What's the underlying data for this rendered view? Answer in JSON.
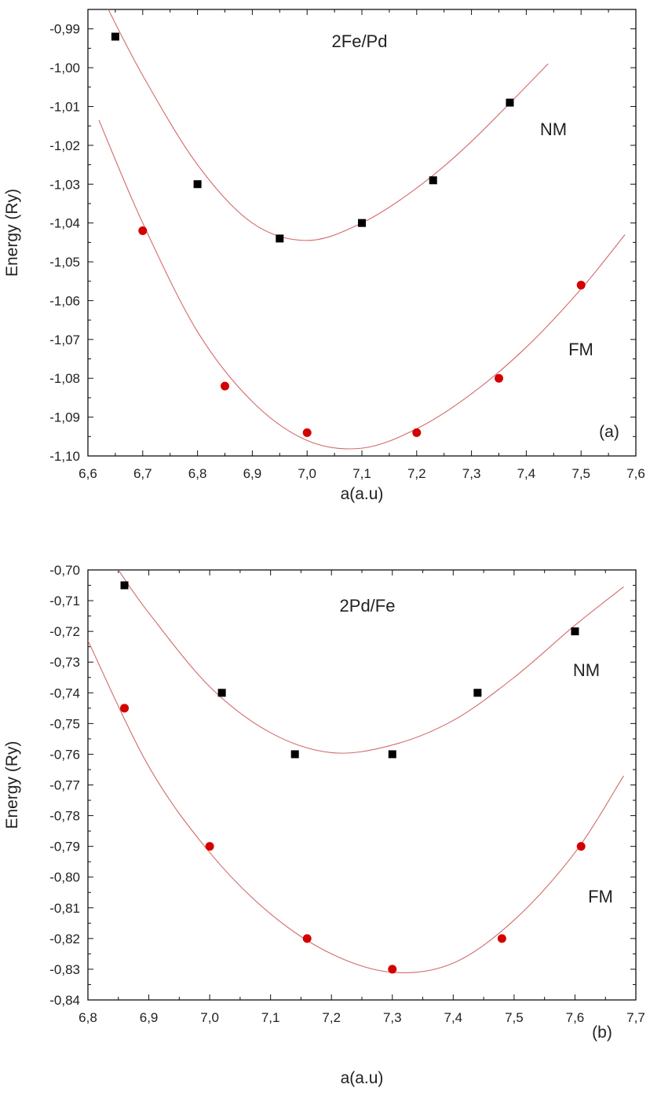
{
  "chart_data": [
    {
      "type": "scatter",
      "panel_label": "(a)",
      "annotation": "2Fe/Pd",
      "xlabel": "a(a.u)",
      "ylabel": "Energy (Ry)",
      "xlim": [
        6.6,
        7.6
      ],
      "ylim": [
        -1.1,
        -0.985
      ],
      "x_ticks": [
        "6,6",
        "6,7",
        "6,8",
        "6,9",
        "7,0",
        "7,1",
        "7,2",
        "7,3",
        "7,4",
        "7,5",
        "7,6"
      ],
      "y_ticks": [
        "-0,99",
        "-1,00",
        "-1,01",
        "-1,02",
        "-1,03",
        "-1,04",
        "-1,05",
        "-1,06",
        "-1,07",
        "-1,08",
        "-1,09",
        "-1,10"
      ],
      "series": [
        {
          "name": "NM",
          "marker": "square",
          "color": "#000000",
          "x": [
            6.65,
            6.8,
            6.95,
            7.1,
            7.23,
            7.37
          ],
          "y": [
            -0.992,
            -1.03,
            -1.044,
            -1.04,
            -1.029,
            -1.009
          ],
          "fit": {
            "x": [
              6.63,
              6.7,
              6.8,
              6.9,
              7.0,
              7.1,
              7.2,
              7.3,
              7.44
            ],
            "y": [
              -0.983,
              -1.002,
              -1.025,
              -1.04,
              -1.0445,
              -1.04,
              -1.031,
              -1.019,
              -0.999
            ]
          }
        },
        {
          "name": "FM",
          "marker": "circle",
          "color": "#d40000",
          "x": [
            6.7,
            6.85,
            7.0,
            7.2,
            7.35,
            7.5
          ],
          "y": [
            -1.042,
            -1.082,
            -1.094,
            -1.094,
            -1.08,
            -1.056
          ],
          "fit": {
            "x": [
              6.62,
              6.7,
              6.8,
              6.9,
              7.0,
              7.1,
              7.2,
              7.3,
              7.4,
              7.5,
              7.58
            ],
            "y": [
              -1.0135,
              -1.04,
              -1.068,
              -1.086,
              -1.096,
              -1.098,
              -1.093,
              -1.084,
              -1.072,
              -1.057,
              -1.043
            ]
          }
        }
      ],
      "fit_color": "#d46a6a"
    },
    {
      "type": "scatter",
      "panel_label": "(b)",
      "annotation": "2Pd/Fe",
      "xlabel": "a(a.u)",
      "ylabel": "Energy (Ry)",
      "xlim": [
        6.8,
        7.7
      ],
      "ylim": [
        -0.84,
        -0.7
      ],
      "x_ticks": [
        "6,8",
        "6,9",
        "7,0",
        "7,1",
        "7,2",
        "7,3",
        "7,4",
        "7,5",
        "7,6",
        "7,7"
      ],
      "y_ticks": [
        "-0,70",
        "-0,71",
        "-0,72",
        "-0,73",
        "-0,74",
        "-0,75",
        "-0,76",
        "-0,77",
        "-0,78",
        "-0,79",
        "-0,80",
        "-0,81",
        "-0,82",
        "-0,83",
        "-0,84"
      ],
      "series": [
        {
          "name": "NM",
          "marker": "square",
          "color": "#000000",
          "x": [
            6.86,
            7.02,
            7.14,
            7.3,
            7.44,
            7.6
          ],
          "y": [
            -0.705,
            -0.74,
            -0.76,
            -0.76,
            -0.74,
            -0.72
          ],
          "fit": {
            "x": [
              6.85,
              6.9,
              7.0,
              7.1,
              7.2,
              7.3,
              7.4,
              7.5,
              7.6,
              7.68
            ],
            "y": [
              -0.7,
              -0.714,
              -0.738,
              -0.753,
              -0.7595,
              -0.757,
              -0.749,
              -0.735,
              -0.718,
              -0.7055
            ]
          }
        },
        {
          "name": "FM",
          "marker": "circle",
          "color": "#d40000",
          "x": [
            6.86,
            7.0,
            7.16,
            7.3,
            7.48,
            7.61
          ],
          "y": [
            -0.745,
            -0.79,
            -0.82,
            -0.83,
            -0.82,
            -0.79
          ],
          "fit": {
            "x": [
              6.8,
              6.9,
              7.0,
              7.1,
              7.2,
              7.3,
              7.4,
              7.5,
              7.6,
              7.68
            ],
            "y": [
              -0.723,
              -0.764,
              -0.792,
              -0.812,
              -0.825,
              -0.831,
              -0.828,
              -0.814,
              -0.792,
              -0.767
            ]
          }
        }
      ],
      "fit_color": "#d46a6a"
    }
  ]
}
